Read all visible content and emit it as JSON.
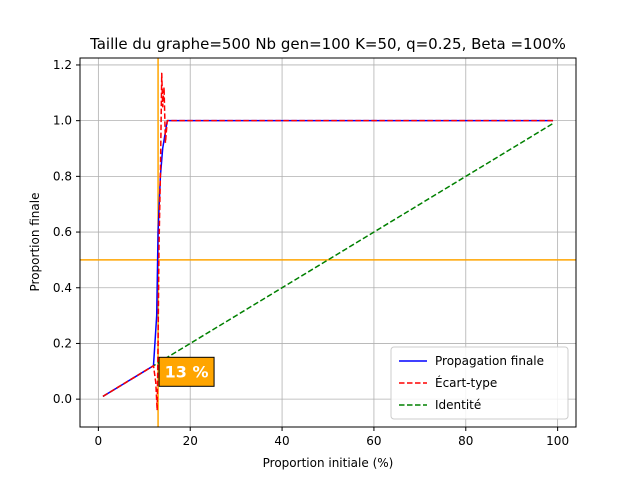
{
  "chart_data": {
    "type": "line",
    "title": "Taille du graphe=500 Nb gen=100 K=50, q=0.25, Beta =100%",
    "xlabel": "Proportion initiale (%)",
    "ylabel": "Proportion finale",
    "xlim": [
      -4,
      104
    ],
    "ylim": [
      -0.1,
      1.225
    ],
    "x_ticks": [
      0,
      20,
      40,
      60,
      80,
      100
    ],
    "y_ticks": [
      0.0,
      0.2,
      0.4,
      0.6,
      0.8,
      1.0,
      1.2
    ],
    "x_tick_labels": [
      "0",
      "20",
      "40",
      "60",
      "80",
      "100"
    ],
    "y_tick_labels": [
      "0.0",
      "0.2",
      "0.4",
      "0.6",
      "0.8",
      "1.0",
      "1.2"
    ],
    "grid": true,
    "legend_position": "bottom-right",
    "series": [
      {
        "name": "Propagation finale",
        "color": "#0000ff",
        "style": "solid",
        "x": [
          1,
          5,
          10,
          12,
          12.7,
          13,
          13.5,
          14,
          15,
          16,
          20,
          40,
          60,
          80,
          99
        ],
        "y": [
          0.01,
          0.05,
          0.1,
          0.12,
          0.3,
          0.6,
          0.8,
          0.9,
          1.0,
          1.0,
          1.0,
          1.0,
          1.0,
          1.0,
          1.0
        ]
      },
      {
        "name": "Écart-type",
        "color": "#ff0000",
        "style": "dashed",
        "x": [
          1,
          5,
          10,
          12,
          12.5,
          12.8,
          13,
          13.2,
          13.5,
          13.8,
          14,
          14.3,
          14.6,
          15,
          16,
          20,
          40,
          60,
          80,
          99
        ],
        "y": [
          0.01,
          0.05,
          0.1,
          0.12,
          0.06,
          -0.04,
          0.2,
          0.55,
          0.8,
          1.17,
          1.05,
          1.12,
          0.92,
          1.0,
          1.0,
          1.0,
          1.0,
          1.0,
          1.0,
          1.0
        ]
      },
      {
        "name": "Identité",
        "color": "#008000",
        "style": "dashed",
        "x": [
          1,
          99
        ],
        "y": [
          0.01,
          0.99
        ]
      }
    ],
    "reference_lines": {
      "color": "#ffa500",
      "vertical_x": 13,
      "horizontal_y": 0.5
    },
    "annotation": {
      "text": "13 %",
      "x": 13,
      "y": 0.1,
      "background": "#ffa500"
    }
  }
}
